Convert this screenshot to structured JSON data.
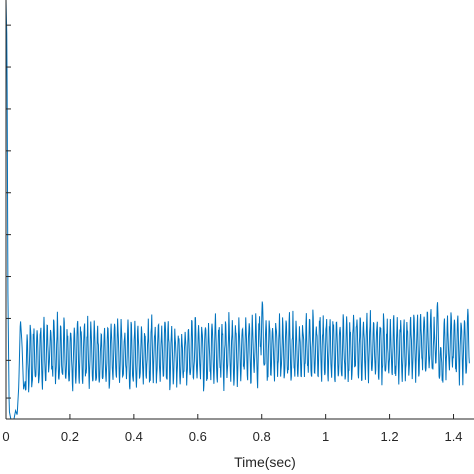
{
  "chart_data": {
    "type": "line",
    "title": "",
    "xlabel": "Time(sec)",
    "ylabel": "",
    "xlim": [
      0,
      1.45
    ],
    "ylim": [
      0,
      1
    ],
    "grid": false,
    "xticks": [
      0,
      0.2,
      0.4,
      0.6,
      0.8,
      1,
      1.2,
      1.4
    ],
    "xtick_labels": [
      "0",
      "0.2",
      "0.4",
      "0.6",
      "0.8",
      "1",
      "1.2",
      "1.4"
    ],
    "ytick_labels": [],
    "colors": {
      "series": "#0072BD",
      "axes": "#262626"
    },
    "series": [
      {
        "name": "",
        "x": [
          0,
          0.003,
          0.006,
          0.01,
          0.015,
          0.02,
          0.025,
          0.03,
          0.035,
          0.04,
          0.045,
          0.05,
          0.055,
          0.06,
          0.065,
          0.07,
          0.08,
          0.09,
          0.1,
          0.15,
          0.2,
          0.25,
          0.3,
          0.35,
          0.4,
          0.45,
          0.5,
          0.55,
          0.6,
          0.65,
          0.7,
          0.75,
          0.79,
          0.8,
          0.805,
          0.81,
          0.85,
          0.9,
          0.95,
          1.0,
          1.05,
          1.1,
          1.15,
          1.2,
          1.25,
          1.3,
          1.34,
          1.35,
          1.36,
          1.37,
          1.4,
          1.43,
          1.445
        ],
        "y": [
          1.0,
          0.9,
          0.3,
          0.02,
          0.0,
          0.0,
          0.0,
          0.02,
          0.01,
          0.08,
          0.24,
          0.18,
          0.07,
          0.09,
          0.12,
          0.15,
          0.14,
          0.16,
          0.15,
          0.16,
          0.15,
          0.16,
          0.15,
          0.16,
          0.15,
          0.16,
          0.16,
          0.15,
          0.16,
          0.16,
          0.16,
          0.17,
          0.16,
          0.25,
          0.17,
          0.16,
          0.17,
          0.16,
          0.17,
          0.17,
          0.16,
          0.17,
          0.17,
          0.16,
          0.17,
          0.18,
          0.17,
          0.22,
          0.12,
          0.17,
          0.18,
          0.17,
          0.18
        ]
      }
    ]
  }
}
